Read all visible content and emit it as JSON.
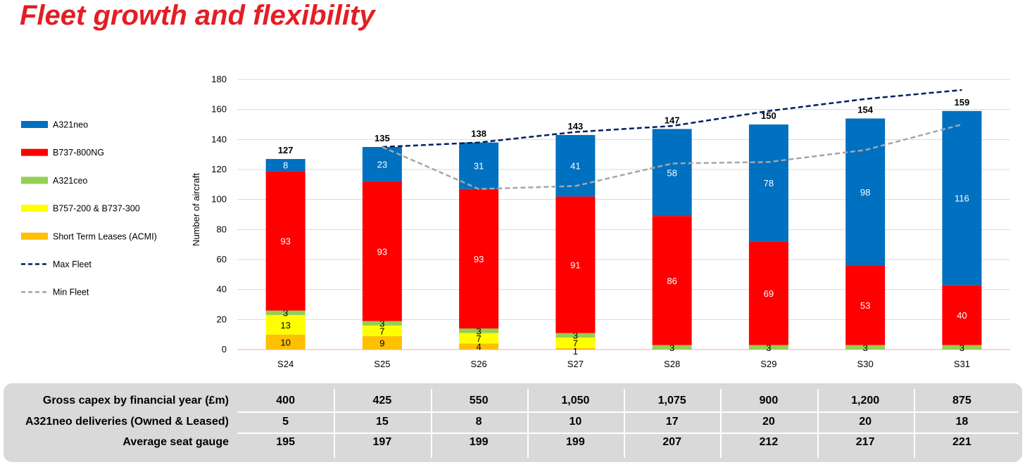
{
  "title": "Fleet growth and flexibility",
  "chart_data": {
    "type": "bar",
    "stacked": true,
    "title": "",
    "xlabel": "",
    "ylabel": "Number of aircraft",
    "ylim": [
      0,
      180
    ],
    "yticks": [
      0,
      20,
      40,
      60,
      80,
      100,
      120,
      140,
      160,
      180
    ],
    "categories": [
      "S24",
      "S25",
      "S26",
      "S27",
      "S28",
      "S29",
      "S30",
      "S31"
    ],
    "series": [
      {
        "name": "Short Term Leases (ACMI)",
        "color": "#ffc000",
        "values": [
          10,
          9,
          4,
          1,
          0,
          0,
          0,
          0
        ]
      },
      {
        "name": "B757-200 & B737-300",
        "color": "#ffff00",
        "values": [
          13,
          7,
          7,
          7,
          0,
          0,
          0,
          0
        ]
      },
      {
        "name": "A321ceo",
        "color": "#92d050",
        "values": [
          3,
          3,
          3,
          3,
          3,
          3,
          3,
          3
        ]
      },
      {
        "name": "B737-800NG",
        "color": "#ff0000",
        "values": [
          93,
          93,
          93,
          91,
          86,
          69,
          53,
          40
        ]
      },
      {
        "name": "A321neo",
        "color": "#0070c0",
        "values": [
          8,
          23,
          31,
          41,
          58,
          78,
          98,
          116
        ]
      }
    ],
    "totals": [
      127,
      135,
      138,
      143,
      147,
      150,
      154,
      159
    ],
    "lines": [
      {
        "name": "Max Fleet",
        "color": "#002060",
        "dash": true,
        "values": [
          null,
          135,
          138,
          145,
          149,
          159,
          167,
          173
        ]
      },
      {
        "name": "Min Fleet",
        "color": "#a6a6a6",
        "dash": true,
        "values": [
          null,
          135,
          107,
          109,
          124,
          125,
          133,
          150
        ]
      }
    ],
    "legend_order": [
      "A321neo",
      "B737-800NG",
      "A321ceo",
      "B757-200 & B737-300",
      "Short Term Leases (ACMI)",
      "Max Fleet",
      "Min Fleet"
    ],
    "legend_position": "left",
    "grid": true
  },
  "table": {
    "rows": [
      {
        "label": "Gross capex by financial year (£m)",
        "values": [
          "400",
          "425",
          "550",
          "1,050",
          "1,075",
          "900",
          "1,200",
          "875"
        ]
      },
      {
        "label": "A321neo deliveries (Owned & Leased)",
        "values": [
          "5",
          "15",
          "8",
          "10",
          "17",
          "20",
          "20",
          "18"
        ]
      },
      {
        "label": "Average seat gauge",
        "values": [
          "195",
          "197",
          "199",
          "199",
          "207",
          "212",
          "217",
          "221"
        ]
      }
    ]
  }
}
